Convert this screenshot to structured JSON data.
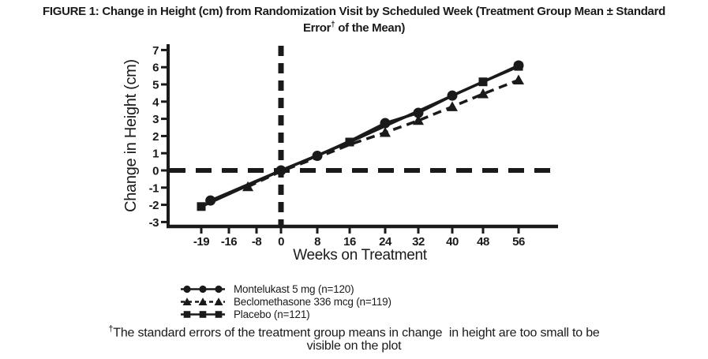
{
  "figure": {
    "title_line1": "FIGURE 1: Change in Height (cm) from Randomization Visit by Scheduled Week (Treatment Group Mean ± Standard",
    "title_line2_pre": "Error",
    "title_dagger": "†",
    "title_line2_post": " of the Mean)",
    "footnote_dagger": "†",
    "footnote_line1": "The standard errors of the treatment group means in change  in height are too small to be",
    "footnote_line2": "visible on the plot"
  },
  "chart_data": {
    "type": "line",
    "title": "FIGURE 1: Change in Height (cm) from Randomization Visit by Scheduled Week (Treatment Group Mean ± Standard Error† of the Mean)",
    "xlabel": "Weeks on Treatment",
    "ylabel": "Change in Height (cm)",
    "x_ticks": [
      -19,
      -16,
      -8,
      0,
      8,
      16,
      24,
      32,
      40,
      48,
      56
    ],
    "y_ticks": [
      7,
      6,
      5,
      4,
      3,
      2,
      1,
      0,
      -1,
      -2,
      -3
    ],
    "ylim": [
      -3,
      7
    ],
    "grid": false,
    "legend_position": "below",
    "reference_lines": {
      "vertical_at_x": 0,
      "horizontal_at_y": 0,
      "style": "dashed"
    },
    "colors": {
      "ink": "#1a1a1a",
      "background": "#ffffff"
    },
    "series": [
      {
        "name": "Montelukast 5 mg (n=120)",
        "marker": "circle",
        "line": "solid",
        "points": [
          [
            -18,
            -1.75
          ],
          [
            0,
            0
          ],
          [
            8,
            0.85
          ],
          [
            16,
            1.7
          ],
          [
            24,
            2.75
          ],
          [
            32,
            3.35
          ],
          [
            40,
            4.35
          ],
          [
            48,
            5.15
          ],
          [
            56,
            6.1
          ]
        ],
        "marker_weeks": [
          -18,
          0,
          8,
          24,
          32,
          40,
          56
        ]
      },
      {
        "name": "Beclomethasone 336 mcg (n=119)",
        "marker": "triangle",
        "line": "dashed",
        "points": [
          [
            -10.5,
            -0.95
          ],
          [
            0,
            -0.05
          ],
          [
            8,
            0.75
          ],
          [
            16,
            1.5
          ],
          [
            24,
            2.2
          ],
          [
            32,
            2.9
          ],
          [
            40,
            3.7
          ],
          [
            48,
            4.45
          ],
          [
            56,
            5.25
          ]
        ],
        "marker_weeks": [
          -10.5,
          24,
          32,
          40,
          48,
          56
        ]
      },
      {
        "name": "Placebo (n=121)",
        "marker": "square",
        "line": "solid",
        "points": [
          [
            -19,
            -2.1
          ],
          [
            0,
            0
          ],
          [
            16,
            1.65
          ],
          [
            48,
            5.15
          ],
          [
            56,
            6.05
          ]
        ],
        "marker_weeks": [
          -19,
          16,
          48,
          56
        ]
      }
    ]
  }
}
